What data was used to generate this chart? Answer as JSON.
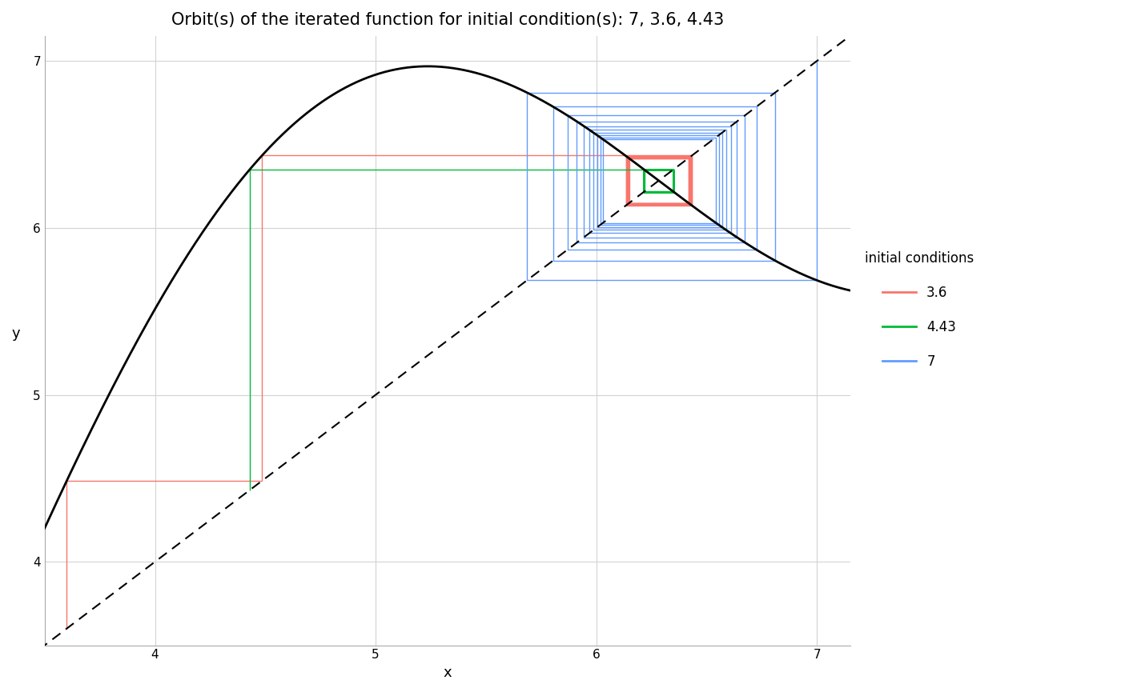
{
  "title": "Orbit(s) of the iterated function for initial condition(s): 7, 3.6, 4.43",
  "xlabel": "x",
  "ylabel": "y",
  "xlim": [
    3.5,
    7.15
  ],
  "ylim": [
    3.5,
    7.15
  ],
  "xticks": [
    4,
    5,
    6,
    7
  ],
  "yticks": [
    4,
    5,
    6,
    7
  ],
  "initial_conditions": [
    3.6,
    4.43,
    7.0
  ],
  "colors": [
    "#F8766D",
    "#00BA38",
    "#619CFF"
  ],
  "ic_labels": [
    "3.6",
    "4.43",
    "7"
  ],
  "n_iterations": 20,
  "bg_color": "#FFFFFF",
  "plot_bg_color": "#FFFFFF",
  "grid_color": "#D3D3D3",
  "curve_color": "#000000",
  "diagonal_color": "#000000",
  "title_fontsize": 15,
  "axis_label_fontsize": 13,
  "tick_fontsize": 11,
  "legend_title_fontsize": 12,
  "legend_fontsize": 12,
  "line_width": 1.0
}
